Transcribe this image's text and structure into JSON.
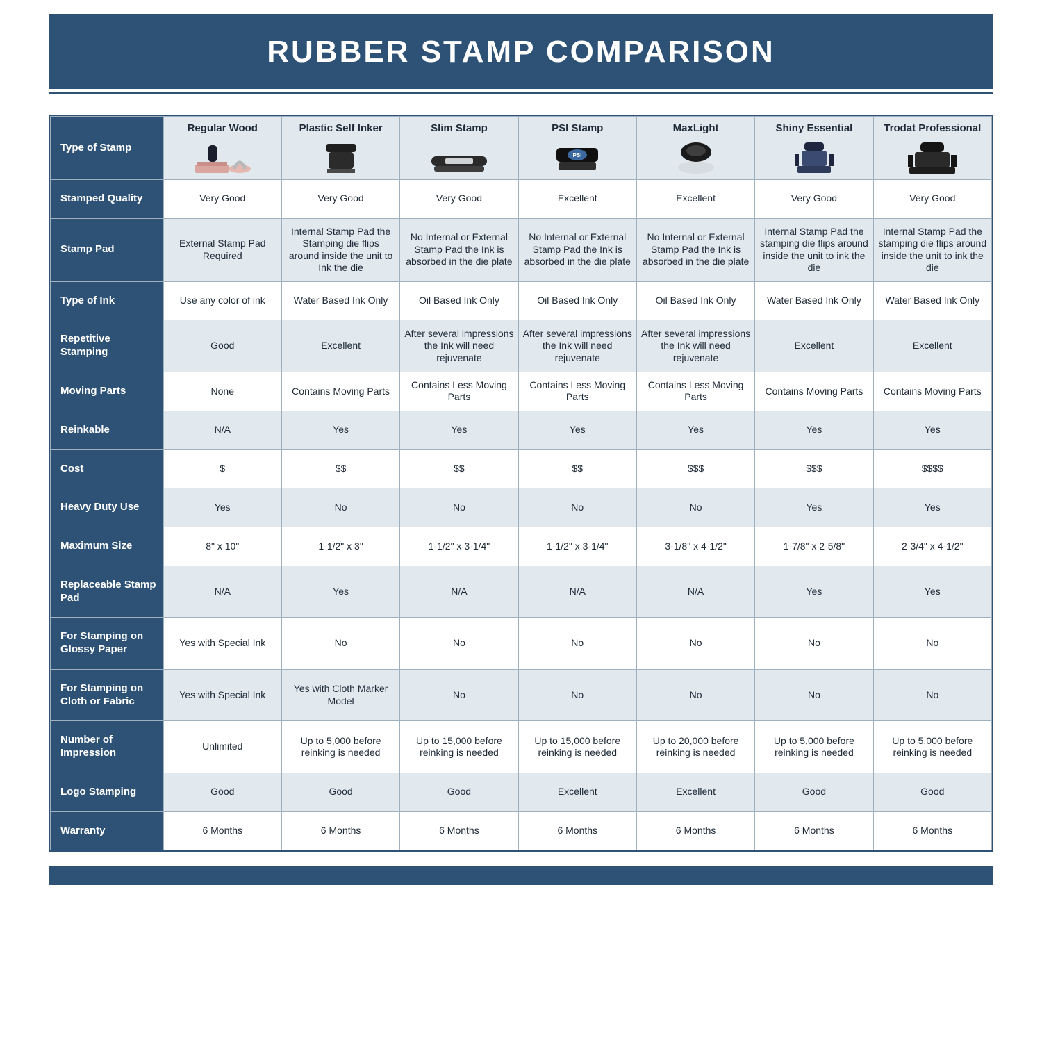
{
  "title": "RUBBER STAMP COMPARISON",
  "colors": {
    "brand": "#2d5276",
    "header_bg": "#e1e9ef",
    "border": "#9fb0bf",
    "text": "#1f2a36",
    "white": "#ffffff"
  },
  "columns": [
    "Regular Wood",
    "Plastic Self Inker",
    "Slim Stamp",
    "PSI Stamp",
    "MaxLight",
    "Shiny Essential",
    "Trodat Professional"
  ],
  "corner_label": "Type of Stamp",
  "rows": [
    {
      "label": "Stamped Quality",
      "alt": false,
      "cells": [
        "Very Good",
        "Very Good",
        "Very Good",
        "Excellent",
        "Excellent",
        "Very Good",
        "Very Good"
      ]
    },
    {
      "label": "Stamp Pad",
      "alt": true,
      "cells": [
        "External Stamp Pad Required",
        "Internal Stamp Pad the Stamping die flips around inside the unit to Ink the die",
        "No Internal or External Stamp Pad the Ink is absorbed in the die plate",
        "No Internal or External Stamp Pad the Ink is absorbed in the die plate",
        "No Internal or External Stamp Pad the Ink is absorbed in the die plate",
        "Internal Stamp Pad the stamping die flips around inside the unit to ink the die",
        "Internal Stamp Pad the stamping die flips around inside the unit to ink the die"
      ]
    },
    {
      "label": "Type of Ink",
      "alt": false,
      "cells": [
        "Use any color of ink",
        "Water Based Ink Only",
        "Oil Based Ink Only",
        "Oil Based Ink Only",
        "Oil Based Ink Only",
        "Water Based Ink Only",
        "Water Based Ink Only"
      ]
    },
    {
      "label": "Repetitive Stamping",
      "alt": true,
      "cells": [
        "Good",
        "Excellent",
        "After several impressions the Ink will need rejuvenate",
        "After several impressions the Ink will need rejuvenate",
        "After several impressions the Ink will need rejuvenate",
        "Excellent",
        "Excellent"
      ]
    },
    {
      "label": "Moving Parts",
      "alt": false,
      "cells": [
        "None",
        "Contains Moving Parts",
        "Contains Less Moving Parts",
        "Contains Less Moving Parts",
        "Contains Less Moving Parts",
        "Contains Moving Parts",
        "Contains Moving Parts"
      ]
    },
    {
      "label": "Reinkable",
      "alt": true,
      "cells": [
        "N/A",
        "Yes",
        "Yes",
        "Yes",
        "Yes",
        "Yes",
        "Yes"
      ]
    },
    {
      "label": "Cost",
      "alt": false,
      "cells": [
        "$",
        "$$",
        "$$",
        "$$",
        "$$$",
        "$$$",
        "$$$$"
      ]
    },
    {
      "label": "Heavy Duty Use",
      "alt": true,
      "cells": [
        "Yes",
        "No",
        "No",
        "No",
        "No",
        "Yes",
        "Yes"
      ]
    },
    {
      "label": "Maximum Size",
      "alt": false,
      "cells": [
        "8\" x 10\"",
        "1-1/2\" x 3\"",
        "1-1/2\" x 3-1/4\"",
        "1-1/2\" x 3-1/4\"",
        "3-1/8\" x 4-1/2\"",
        "1-7/8\" x 2-5/8\"",
        "2-3/4\" x 4-1/2\""
      ]
    },
    {
      "label": "Replaceable Stamp Pad",
      "alt": true,
      "cells": [
        "N/A",
        "Yes",
        "N/A",
        "N/A",
        "N/A",
        "Yes",
        "Yes"
      ]
    },
    {
      "label": "For Stamping on Glossy Paper",
      "alt": false,
      "cells": [
        "Yes with Special Ink",
        "No",
        "No",
        "No",
        "No",
        "No",
        "No"
      ]
    },
    {
      "label": "For Stamping on Cloth or Fabric",
      "alt": true,
      "cells": [
        "Yes with Special Ink",
        "Yes with Cloth Marker Model",
        "No",
        "No",
        "No",
        "No",
        "No"
      ]
    },
    {
      "label": "Number of Impression",
      "alt": false,
      "cells": [
        "Unlimited",
        "Up to 5,000 before reinking is needed",
        "Up to 15,000 before reinking is needed",
        "Up to 15,000 before reinking is needed",
        "Up to 20,000 before reinking is needed",
        "Up to 5,000 before reinking is needed",
        "Up to 5,000 before reinking is needed"
      ]
    },
    {
      "label": "Logo Stamping",
      "alt": true,
      "cells": [
        "Good",
        "Good",
        "Good",
        "Excellent",
        "Excellent",
        "Good",
        "Good"
      ]
    },
    {
      "label": "Warranty",
      "alt": false,
      "cells": [
        "6 Months",
        "6 Months",
        "6 Months",
        "6 Months",
        "6 Months",
        "6 Months",
        "6 Months"
      ]
    }
  ],
  "icons": [
    {
      "name": "regular-wood-icon"
    },
    {
      "name": "plastic-self-inker-icon"
    },
    {
      "name": "slim-stamp-icon"
    },
    {
      "name": "psi-stamp-icon"
    },
    {
      "name": "maxlight-icon"
    },
    {
      "name": "shiny-essential-icon"
    },
    {
      "name": "trodat-professional-icon"
    }
  ]
}
